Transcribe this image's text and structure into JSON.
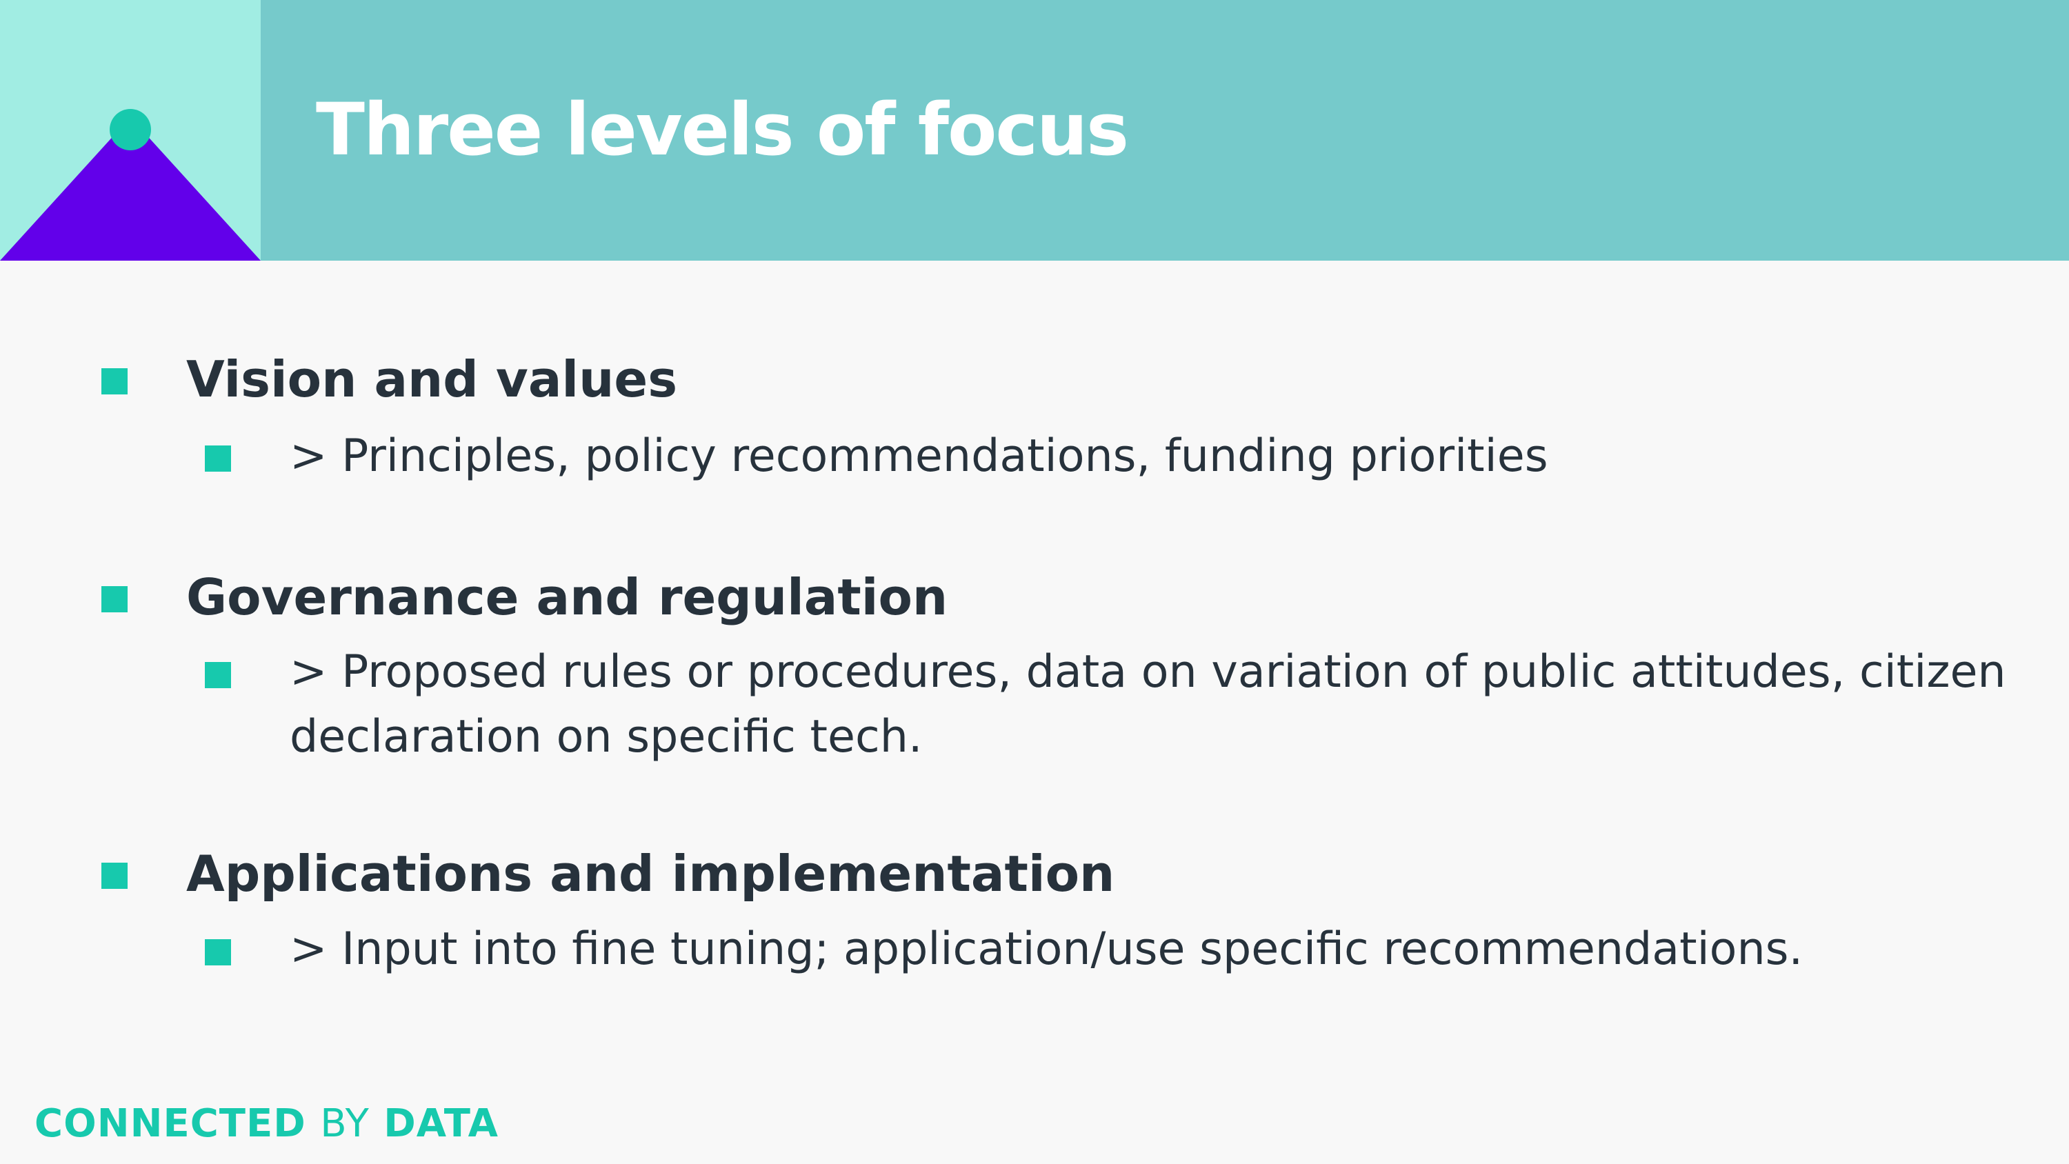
{
  "slide": {
    "title": "Three levels of focus",
    "colors": {
      "header": "#76cacb",
      "logo_bg": "#a1ede3",
      "triangle": "#6200ea",
      "accent": "#17c9ad",
      "text": "#27323c",
      "background": "#f8f8f8"
    },
    "items": [
      {
        "heading": "Vision and values",
        "detail": "> Principles, policy recommendations, funding priorities"
      },
      {
        "heading": "Governance and regulation",
        "detail": "> Proposed rules or procedures, data on variation of public attitudes, citizen declaration on specific tech."
      },
      {
        "heading": "Applications and implementation",
        "detail": "> Input into fine tuning; application/use specific recommendations."
      }
    ]
  },
  "footer": {
    "brand_part1": "CONNECTED",
    "brand_part2": "BY",
    "brand_part3": "DATA"
  }
}
